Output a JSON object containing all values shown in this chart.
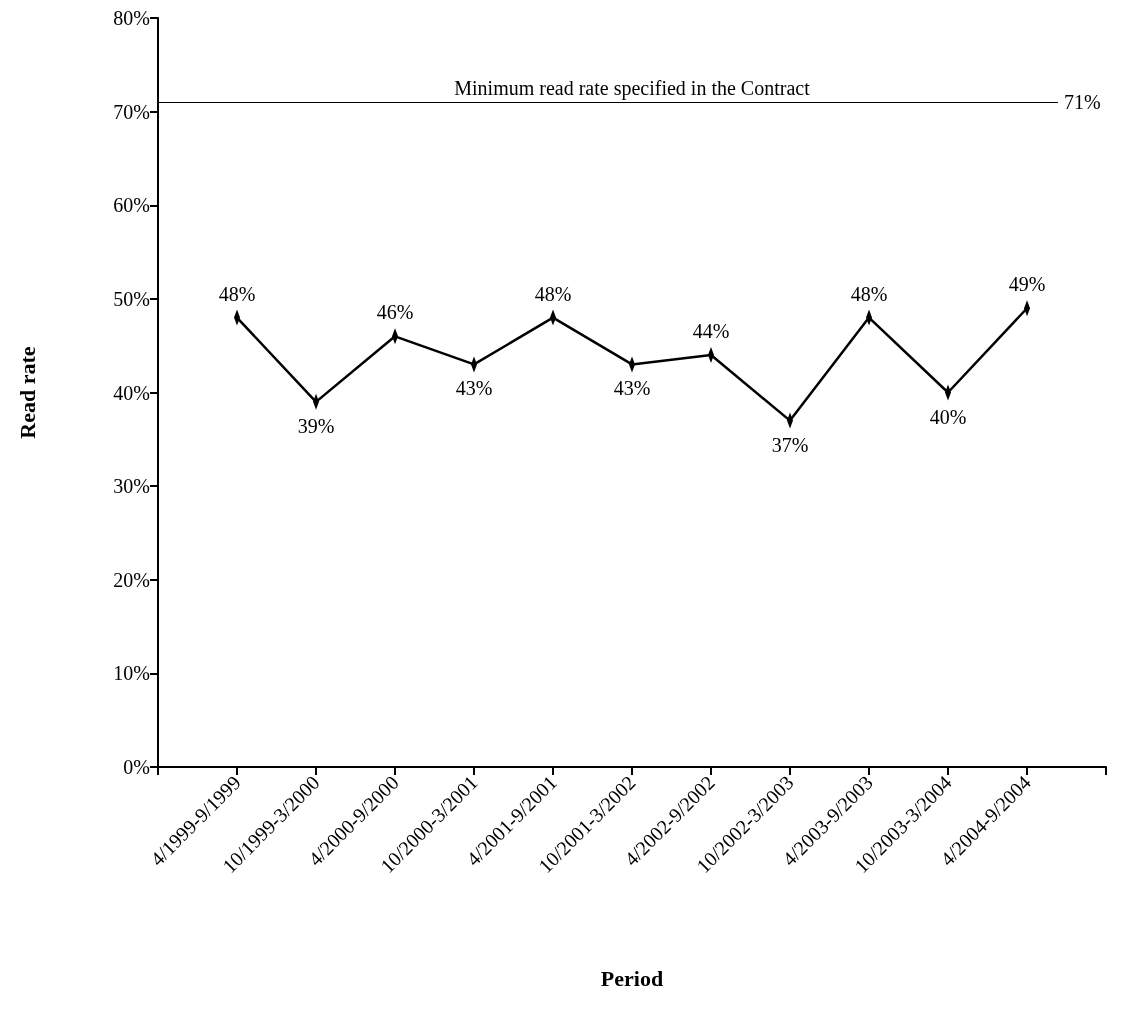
{
  "chart_data": {
    "type": "line",
    "xlabel": "Period",
    "ylabel": "Read rate",
    "categories": [
      "4/1999-9/1999",
      "10/1999-3/2000",
      "4/2000-9/2000",
      "10/2000-3/2001",
      "4/2001-9/2001",
      "10/2001-3/2002",
      "4/2002-9/2002",
      "10/2002-3/2003",
      "4/2003-9/2003",
      "10/2003-3/2004",
      "4/2004-9/2004"
    ],
    "series": [
      {
        "color": "#000000",
        "values": [
          48,
          39,
          46,
          43,
          48,
          43,
          44,
          37,
          48,
          40,
          49
        ],
        "value_labels": [
          "48%",
          "39%",
          "46%",
          "43%",
          "48%",
          "43%",
          "44%",
          "37%",
          "48%",
          "40%",
          "49%"
        ]
      }
    ],
    "ylim": [
      0,
      80
    ],
    "yticks": [
      {
        "value": 0,
        "label": "0%"
      },
      {
        "value": 10,
        "label": "10%"
      },
      {
        "value": 20,
        "label": "20%"
      },
      {
        "value": 30,
        "label": "30%"
      },
      {
        "value": 40,
        "label": "40%"
      },
      {
        "value": 50,
        "label": "50%"
      },
      {
        "value": 60,
        "label": "60%"
      },
      {
        "value": 70,
        "label": "70%"
      },
      {
        "value": 80,
        "label": "80%"
      }
    ],
    "ref_lines": [
      {
        "axis": "y",
        "value": 71,
        "label": "Minimum read rate specified in the Contract",
        "color": "#000000"
      }
    ],
    "annotations": [
      {
        "text": "71%",
        "y": 71
      }
    ],
    "grid": false,
    "marker": "diamond"
  }
}
